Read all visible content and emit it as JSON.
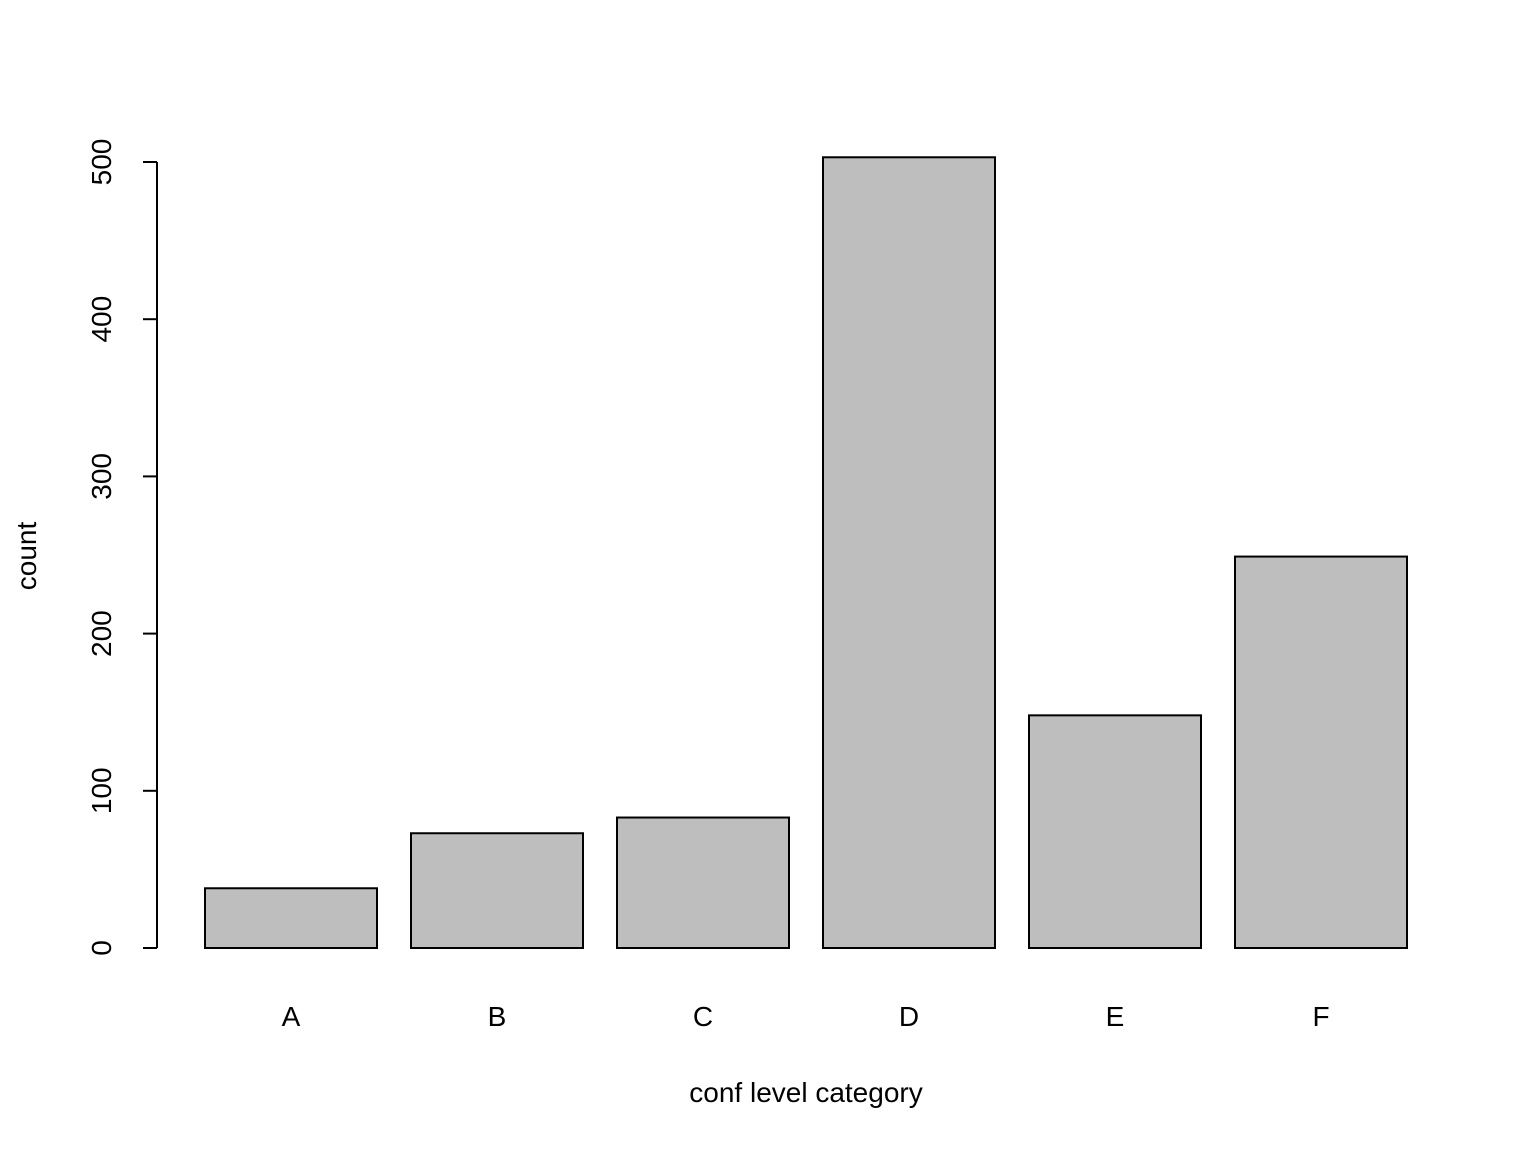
{
  "chart_data": {
    "type": "bar",
    "categories": [
      "A",
      "B",
      "C",
      "D",
      "E",
      "F"
    ],
    "values": [
      38,
      73,
      83,
      503,
      148,
      249
    ],
    "xlabel": "conf level category",
    "ylabel": "count",
    "ylim": [
      0,
      500
    ],
    "yticks": [
      0,
      100,
      200,
      300,
      400,
      500
    ],
    "grid": false,
    "bar_fill": "#bebebe",
    "bar_stroke": "#000000"
  }
}
